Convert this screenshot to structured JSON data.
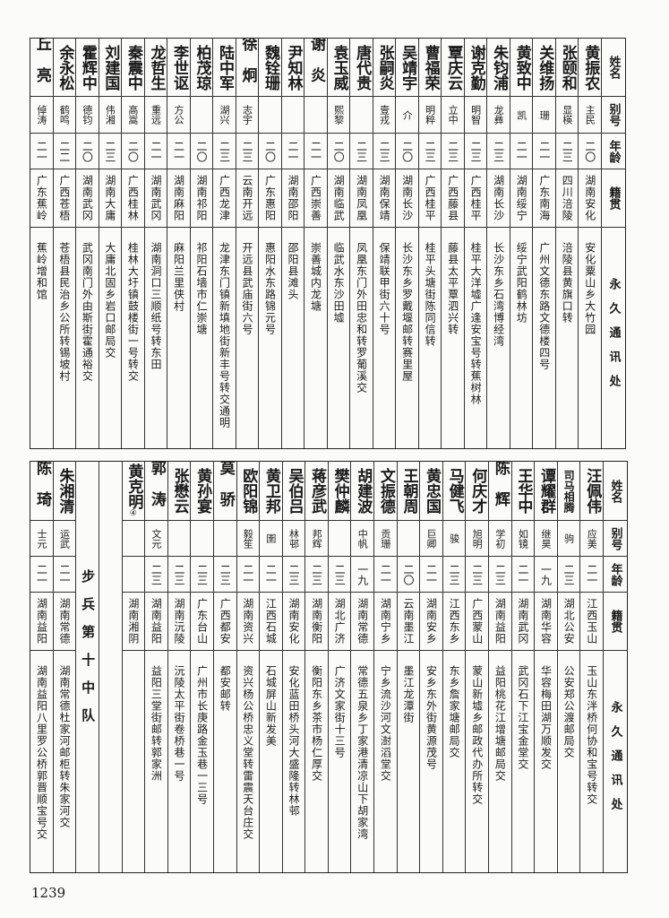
{
  "headers": {
    "name": "姓名",
    "alias": "别号",
    "age": "年龄",
    "native": "籍贯",
    "address": "永久通讯处"
  },
  "top": {
    "people": [
      {
        "name": "黄振农",
        "alias": "主民",
        "age": "二〇",
        "native": "湖南安化",
        "address": "安化粟山乡大竹园"
      },
      {
        "name": "张颐和",
        "alias": "显楧",
        "age": "二三",
        "native": "四川涪陵",
        "address": "涪陵县黄旗口转"
      },
      {
        "name": "关维扬",
        "alias": "珊",
        "age": "二一",
        "native": "广东南海",
        "address": "广州文德东路文德楼四号"
      },
      {
        "name": "黄致中",
        "alias": "凯",
        "age": "二一",
        "native": "湖南绥宁",
        "address": "绥宁武阳鹤林坊"
      },
      {
        "name": "朱钧浦",
        "alias": "龙彝",
        "age": "二三",
        "native": "湖南长沙",
        "address": "长沙东乡石湾博经湾"
      },
      {
        "name": "谢克勤",
        "alias": "明智",
        "age": "二三",
        "native": "广西桂平",
        "address": "桂平大洋墟广逢安宝号转蕉树林"
      },
      {
        "name": "覃庆云",
        "alias": "立中",
        "age": "二三",
        "native": "广西藤县",
        "address": "藤县太平覃泗兴转"
      },
      {
        "name": "曹福荣",
        "alias": "明粹",
        "age": "二三",
        "native": "广西桂平",
        "address": "桂平头塘街陈同信转"
      },
      {
        "name": "吴靖宇",
        "alias": "介",
        "age": "二〇",
        "native": "湖南长沙",
        "address": "长沙东乡罗戴堰邮转赛里屋"
      },
      {
        "name": "张嗣炎",
        "alias": "壹戎",
        "age": "二三",
        "native": "湖南保靖",
        "address": "保靖联甲街六十号"
      },
      {
        "name": "唐代贵",
        "alias": "",
        "age": "二三",
        "native": "湖南凤凰",
        "address": "凤凰东门外田忠和转罗葡溪交"
      },
      {
        "name": "袁玉威",
        "alias": "熙黎",
        "age": "二〇",
        "native": "湖南临武",
        "address": "临武水东沙田墟"
      },
      {
        "name": "谢炎",
        "alias": "",
        "age": "二一",
        "native": "广西崇善",
        "address": "崇善城内龙塘"
      },
      {
        "name": "尹知林",
        "alias": "",
        "age": "二一",
        "native": "湖南邵阳",
        "address": "邵阳县滩头"
      },
      {
        "name": "魏铨珊",
        "alias": "",
        "age": "二〇",
        "native": "广东惠阳",
        "address": "惠阳水东路锦元号"
      },
      {
        "name": "徐炯",
        "alias": "志宇",
        "age": "二三",
        "native": "云南开远",
        "address": "开远县武庙街六号"
      },
      {
        "name": "陆中军",
        "alias": "湖兴",
        "age": "二三",
        "native": "广西龙津",
        "address": "龙津东门镇新填地街新丰号转交通明"
      },
      {
        "name": "柏茂琼",
        "alias": "",
        "age": "二〇",
        "native": "湖南祁阳",
        "address": "祁阳石墙市仁崇塘"
      },
      {
        "name": "李世讴",
        "alias": "方公",
        "age": "二一",
        "native": "湖南麻阳",
        "address": "麻阳兰里侠村"
      },
      {
        "name": "龙哲生",
        "alias": "重远",
        "age": "二一",
        "native": "湖南武冈",
        "address": "湖南洞口三顺纸号转东田"
      },
      {
        "name": "秦震中",
        "alias": "高嵩",
        "age": "二〇",
        "native": "广西桂林",
        "address": "桂林大圩镇鼓楼街一号转交"
      },
      {
        "name": "刘建国",
        "alias": "伟湘",
        "age": "二三",
        "native": "湖南大庸",
        "address": "大庸北固乡岩口邮局交"
      },
      {
        "name": "霍辉中",
        "alias": "德钧",
        "age": "二〇",
        "native": "湖南武冈",
        "address": "武冈南门外由斯街霍通裕交"
      },
      {
        "name": "余永松",
        "alias": "鹤鸣",
        "age": "二二",
        "native": "广西苍梧",
        "address": "苍梧县民治乡公所转锡坡村"
      },
      {
        "name": "丘亮",
        "alias": "倬涛",
        "age": "二一",
        "native": "广东蕉岭",
        "address": "蕉岭增和馆"
      }
    ]
  },
  "bottom": {
    "people": [
      {
        "name": "汪佩伟",
        "alias": "应美",
        "age": "二一",
        "native": "江西玉山",
        "address": "玉山东泮桥何协和宝号转交"
      },
      {
        "name": "司马相腾",
        "alias": "驹",
        "age": "二三",
        "native": "湖北公安",
        "address": "公安郑公渡邮局交"
      },
      {
        "name": "谭耀群",
        "alias": "继昊",
        "age": "一九",
        "native": "湖南华容",
        "address": "华容梅田湖万顺发交"
      },
      {
        "name": "王华中",
        "alias": "如镜",
        "age": "二一",
        "native": "湖南武冈",
        "address": "武冈石下江宝金堂交"
      },
      {
        "name": "陈辉",
        "alias": "学初",
        "age": "二三",
        "native": "湖南益阳",
        "address": "益阳桃花江增塘邮局交"
      },
      {
        "name": "何庆才",
        "alias": "旭明",
        "age": "二三",
        "native": "广西蒙山",
        "address": "蒙山新墟乡邮政代办所转交"
      },
      {
        "name": "马健飞",
        "alias": "骏",
        "age": "二三",
        "native": "江西东乡",
        "address": "东乡詹家塘邮局交"
      },
      {
        "name": "黄忠国",
        "alias": "巨卿",
        "age": "二一",
        "native": "湖南安乡",
        "address": "安乡东外街黄源茂号"
      },
      {
        "name": "王朝周",
        "alias": "",
        "age": "二〇",
        "native": "云南墨江",
        "address": "墨江龙潭街"
      },
      {
        "name": "文振德",
        "alias": "贡珊",
        "age": "二一",
        "native": "湖南宁乡",
        "address": "宁乡流沙河文澍滔堂交"
      },
      {
        "name": "胡建波",
        "alias": "中帆",
        "age": "一九",
        "native": "湖南常德",
        "address": "常德五泉乡丁家港清凉山下胡家湾"
      },
      {
        "name": "樊仲麟",
        "alias": "",
        "age": "二三",
        "native": "湖北广济",
        "address": "广济文家街十三号"
      },
      {
        "name": "蒋彦武",
        "alias": "邦辉",
        "age": "二三",
        "native": "湖南衡阳",
        "address": "衡阳东乡茶市杨仁厚交"
      },
      {
        "name": "吴伯吕",
        "alias": "林邨",
        "age": "二三",
        "native": "湖南安化",
        "address": "安化蓝田桥头河大盛隆转林邨"
      },
      {
        "name": "黄卫邦",
        "alias": "圉",
        "age": "二一",
        "native": "江西石城",
        "address": "石城屏山新发美"
      },
      {
        "name": "欧阳锦",
        "alias": "毅笙",
        "age": "二一",
        "native": "湖南资兴",
        "address": "资兴杨公桥忠义堂转雷震天台庄交"
      },
      {
        "name": "莫骄",
        "alias": "",
        "age": "二三",
        "native": "广西都安",
        "address": "都安邮转"
      },
      {
        "name": "黄孙宴",
        "alias": "",
        "age": "二三",
        "native": "广东台山",
        "address": "广州市长庚路金玉巷一三号"
      },
      {
        "name": "张懋云",
        "alias": "",
        "age": "二三",
        "native": "湖南沅陵",
        "address": "沅陵太平街卷桥巷一号"
      },
      {
        "name": "郭涛",
        "alias": "文元",
        "age": "二三",
        "native": "湖南益阳",
        "address": "益阳三堂街邮转郭家洲"
      },
      {
        "name": "黄克明",
        "footnote": "④",
        "alias": "",
        "age": "",
        "native": "湖南湘阴",
        "address": ""
      }
    ],
    "section_label": "步兵第十中队",
    "after_section": [
      {
        "name": "朱湘清",
        "alias": "运武",
        "age": "二一",
        "native": "湖南常德",
        "address": "湖南常德杜家河邮柜转朱家河交"
      },
      {
        "name": "陈琦",
        "alias": "士元",
        "age": "二一",
        "native": "湖南益阳",
        "address": "湖南益阳八里罗公桥郭晋顺宝号交"
      }
    ]
  },
  "page_number": "1239"
}
